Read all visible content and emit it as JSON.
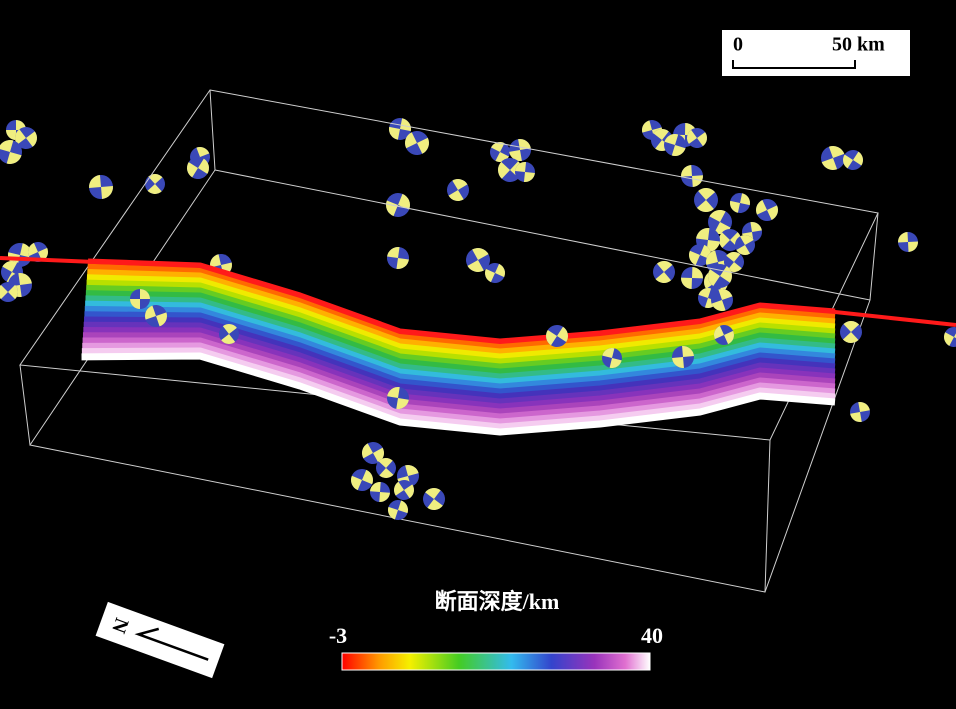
{
  "scale_bar": {
    "start": "0",
    "end": "50 km"
  },
  "colorbar": {
    "title": "断面深度/km",
    "min": -3,
    "max": 40
  },
  "north_arrow": {
    "label": "N"
  }
}
